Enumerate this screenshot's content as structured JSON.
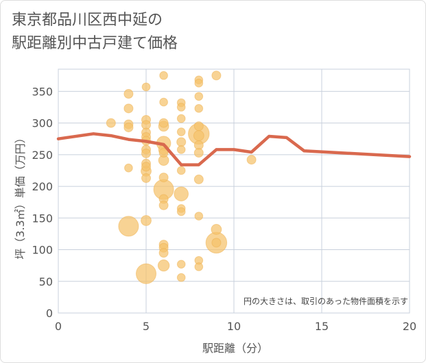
{
  "title_line1": "東京都品川区西中延の",
  "title_line2": "駅距離別中古戸建て価格",
  "chart_data": {
    "type": "scatter",
    "xlabel": "駅距離（分）",
    "ylabel": "坪（3.3㎡）単価（万円）",
    "xlim": [
      0,
      20
    ],
    "ylim": [
      0,
      385
    ],
    "x_ticks": [
      "0",
      "5",
      "10",
      "15",
      "20"
    ],
    "y_ticks": [
      "0",
      "50",
      "100",
      "150",
      "200",
      "250",
      "300",
      "350"
    ],
    "grid": true,
    "annotation": "円の大きさは、取引のあった物件面積を示す",
    "colors": {
      "bubble": "#f5c26b",
      "line": "#d9694e",
      "grid": "#c8d0dc"
    },
    "points": [
      {
        "x": 3,
        "y": 300,
        "s": 1
      },
      {
        "x": 4,
        "y": 346,
        "s": 1
      },
      {
        "x": 4,
        "y": 323,
        "s": 1
      },
      {
        "x": 4,
        "y": 298,
        "s": 1
      },
      {
        "x": 4,
        "y": 293,
        "s": 1
      },
      {
        "x": 4,
        "y": 229,
        "s": 0.8
      },
      {
        "x": 4,
        "y": 137,
        "s": 5
      },
      {
        "x": 5,
        "y": 357,
        "s": 0.8
      },
      {
        "x": 5,
        "y": 305,
        "s": 1
      },
      {
        "x": 5,
        "y": 297,
        "s": 1
      },
      {
        "x": 5,
        "y": 285,
        "s": 1
      },
      {
        "x": 5,
        "y": 278,
        "s": 1
      },
      {
        "x": 5,
        "y": 272,
        "s": 1
      },
      {
        "x": 5,
        "y": 258,
        "s": 1
      },
      {
        "x": 5,
        "y": 252,
        "s": 1
      },
      {
        "x": 5,
        "y": 236,
        "s": 1
      },
      {
        "x": 5,
        "y": 231,
        "s": 1
      },
      {
        "x": 5,
        "y": 224,
        "s": 1.3
      },
      {
        "x": 5,
        "y": 213,
        "s": 1
      },
      {
        "x": 5,
        "y": 146,
        "s": 1.3
      },
      {
        "x": 5,
        "y": 62,
        "s": 5
      },
      {
        "x": 6,
        "y": 375,
        "s": 0.8
      },
      {
        "x": 6,
        "y": 333,
        "s": 0.8
      },
      {
        "x": 6,
        "y": 300,
        "s": 1
      },
      {
        "x": 6,
        "y": 295,
        "s": 1.3
      },
      {
        "x": 6,
        "y": 268,
        "s": 2.5
      },
      {
        "x": 6,
        "y": 258,
        "s": 1.3
      },
      {
        "x": 6,
        "y": 253,
        "s": 1
      },
      {
        "x": 6,
        "y": 241,
        "s": 1.3
      },
      {
        "x": 6,
        "y": 214,
        "s": 1
      },
      {
        "x": 6,
        "y": 195,
        "s": 5
      },
      {
        "x": 6,
        "y": 180,
        "s": 1
      },
      {
        "x": 6,
        "y": 170,
        "s": 1
      },
      {
        "x": 6,
        "y": 108,
        "s": 1
      },
      {
        "x": 6,
        "y": 103,
        "s": 1
      },
      {
        "x": 6,
        "y": 95,
        "s": 1
      },
      {
        "x": 6,
        "y": 75,
        "s": 1.6
      },
      {
        "x": 7,
        "y": 332,
        "s": 0.8
      },
      {
        "x": 7,
        "y": 325,
        "s": 0.8
      },
      {
        "x": 7,
        "y": 307,
        "s": 0.8
      },
      {
        "x": 7,
        "y": 286,
        "s": 0.8
      },
      {
        "x": 7,
        "y": 270,
        "s": 1
      },
      {
        "x": 7,
        "y": 258,
        "s": 0.8
      },
      {
        "x": 7,
        "y": 225,
        "s": 0.8
      },
      {
        "x": 7,
        "y": 188,
        "s": 2.5
      },
      {
        "x": 7,
        "y": 165,
        "s": 0.8
      },
      {
        "x": 7,
        "y": 160,
        "s": 0.8
      },
      {
        "x": 7,
        "y": 77,
        "s": 0.8
      },
      {
        "x": 7,
        "y": 56,
        "s": 0.8
      },
      {
        "x": 8,
        "y": 368,
        "s": 0.8
      },
      {
        "x": 8,
        "y": 363,
        "s": 0.8
      },
      {
        "x": 8,
        "y": 342,
        "s": 0.8
      },
      {
        "x": 8,
        "y": 323,
        "s": 0.8
      },
      {
        "x": 8,
        "y": 295,
        "s": 1
      },
      {
        "x": 8,
        "y": 283,
        "s": 5.5
      },
      {
        "x": 8,
        "y": 280,
        "s": 1.3
      },
      {
        "x": 8,
        "y": 265,
        "s": 1
      },
      {
        "x": 8,
        "y": 253,
        "s": 1
      },
      {
        "x": 8,
        "y": 211,
        "s": 1
      },
      {
        "x": 8,
        "y": 153,
        "s": 0.8
      },
      {
        "x": 8,
        "y": 83,
        "s": 0.8
      },
      {
        "x": 8,
        "y": 73,
        "s": 0.8
      },
      {
        "x": 9,
        "y": 375,
        "s": 1
      },
      {
        "x": 9,
        "y": 132,
        "s": 1.3
      },
      {
        "x": 9,
        "y": 111,
        "s": 5.5
      },
      {
        "x": 9,
        "y": 111,
        "s": 1
      },
      {
        "x": 11,
        "y": 242,
        "s": 1
      }
    ],
    "trend_line": {
      "x": [
        0,
        2,
        3,
        4,
        5,
        6,
        7,
        8,
        9,
        10,
        11,
        12,
        13,
        14,
        20
      ],
      "y": [
        275,
        283,
        280,
        274,
        271,
        266,
        234,
        234,
        258,
        258,
        254,
        279,
        277,
        256,
        247
      ]
    }
  }
}
